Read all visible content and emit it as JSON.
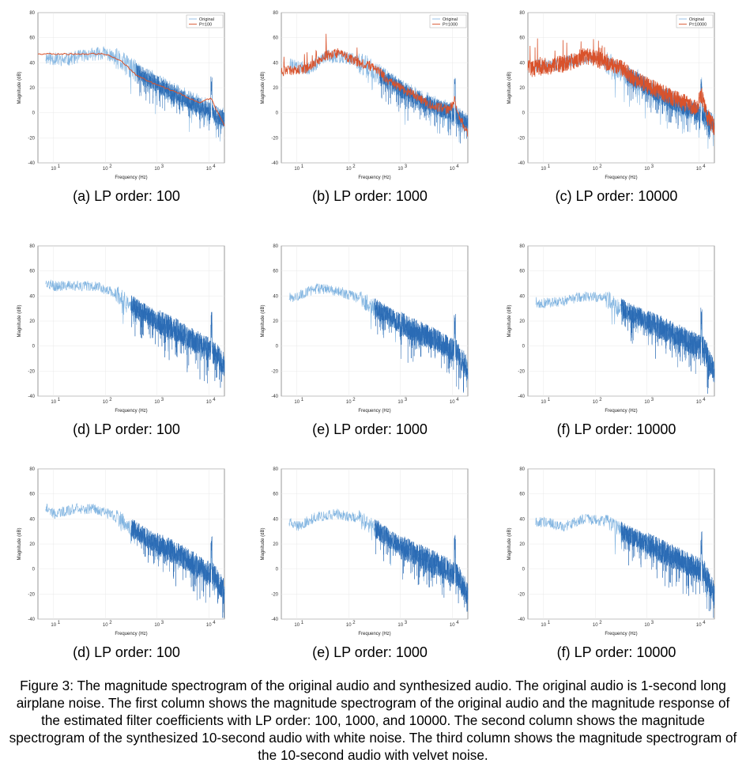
{
  "panels": [
    {
      "caption": "(a) LP order: 100",
      "legend": [
        "Original",
        "P=100"
      ],
      "kind": "lp",
      "order": 100
    },
    {
      "caption": "(b) LP order: 1000",
      "legend": [
        "Original",
        "P=1000"
      ],
      "kind": "lp",
      "order": 1000
    },
    {
      "caption": "(c) LP order: 10000",
      "legend": [
        "Original",
        "P=10000"
      ],
      "kind": "lp",
      "order": 10000
    },
    {
      "caption": "(d) LP order: 100",
      "legend": [],
      "kind": "white",
      "order": 100
    },
    {
      "caption": "(e) LP order: 1000",
      "legend": [],
      "kind": "white",
      "order": 1000
    },
    {
      "caption": "(f) LP order: 10000",
      "legend": [],
      "kind": "white",
      "order": 10000
    },
    {
      "caption": "(d) LP order: 100",
      "legend": [],
      "kind": "velvet",
      "order": 100
    },
    {
      "caption": "(e) LP order: 1000",
      "legend": [],
      "kind": "velvet",
      "order": 1000
    },
    {
      "caption": "(f) LP order: 10000",
      "legend": [],
      "kind": "velvet",
      "order": 10000
    }
  ],
  "axes": {
    "xlabel": "Frequency (Hz)",
    "ylabel": "Magnitude (dB)",
    "yticks": [
      "80",
      "60",
      "40",
      "20",
      "0",
      "-20",
      "-40"
    ],
    "xticks": [
      "10",
      "10",
      "10",
      "10"
    ],
    "xtick_exponents": [
      "1",
      "2",
      "3",
      "4"
    ]
  },
  "colors": {
    "original": "#7fb3e0",
    "synth": "#2a6bb5",
    "lp": "#d9522b",
    "axis": "#555555",
    "grid": "#e8e8e8"
  },
  "figure_caption": "Figure 3: The magnitude spectrogram of the original audio and synthesized audio. The original audio is 1-second long airplane noise.  The first column shows the magnitude spectrogram of the original audio and the magnitude response of the estimated filter coefficients with LP order: 100, 1000, and 10000. The second column shows the magnitude spectrogram of the synthesized 10-second audio with white noise. The third column shows the magnitude spectrogram of the 10-second audio with velvet noise.",
  "chart_data": [
    {
      "type": "line",
      "xlabel": "Frequency (Hz)",
      "ylabel": "Magnitude (dB)",
      "xscale": "log",
      "xlim": [
        5,
        20000
      ],
      "ylim": [
        -40,
        80
      ],
      "series": [
        {
          "name": "Original",
          "x": [
            10,
            100,
            1000,
            10000,
            20000
          ],
          "values": [
            45,
            48,
            15,
            -5,
            -10
          ]
        },
        {
          "name": "P=100",
          "x": [
            5,
            100,
            1000,
            10000,
            20000
          ],
          "values": [
            47,
            47,
            18,
            5,
            -10
          ]
        }
      ]
    },
    {
      "type": "line",
      "xlabel": "Frequency (Hz)",
      "ylabel": "Magnitude (dB)",
      "xscale": "log",
      "xlim": [
        5,
        20000
      ],
      "ylim": [
        -40,
        80
      ],
      "series": [
        {
          "name": "Original",
          "x": [
            10,
            100,
            1000,
            10000,
            20000
          ],
          "values": [
            38,
            42,
            12,
            -5,
            -10
          ]
        },
        {
          "name": "P=1000",
          "x": [
            5,
            100,
            1000,
            10000,
            20000
          ],
          "values": [
            33,
            40,
            15,
            2,
            -15
          ]
        }
      ]
    },
    {
      "type": "line",
      "xlabel": "Frequency (Hz)",
      "ylabel": "Magnitude (dB)",
      "xscale": "log",
      "xlim": [
        5,
        20000
      ],
      "ylim": [
        -40,
        80
      ],
      "series": [
        {
          "name": "Original",
          "x": [
            10,
            100,
            1000,
            10000,
            20000
          ],
          "values": [
            38,
            42,
            12,
            -5,
            -10
          ]
        },
        {
          "name": "P=10000",
          "x": [
            5,
            100,
            1000,
            10000,
            20000
          ],
          "values": [
            35,
            42,
            14,
            3,
            -12
          ]
        }
      ]
    },
    {
      "type": "line",
      "xlabel": "Frequency (Hz)",
      "ylabel": "Magnitude (dB)",
      "xscale": "log",
      "xlim": [
        5,
        20000
      ],
      "ylim": [
        -40,
        80
      ],
      "series": [
        {
          "x": [
            5,
            100,
            1000,
            10000,
            20000
          ],
          "values": [
            54,
            45,
            15,
            -5,
            -20
          ]
        }
      ]
    },
    {
      "type": "line",
      "xlabel": "Frequency (Hz)",
      "ylabel": "Magnitude (dB)",
      "xscale": "log",
      "xlim": [
        5,
        20000
      ],
      "ylim": [
        -40,
        80
      ],
      "series": [
        {
          "x": [
            5,
            100,
            1000,
            10000,
            20000
          ],
          "values": [
            37,
            45,
            15,
            -5,
            -20
          ]
        }
      ]
    },
    {
      "type": "line",
      "xlabel": "Frequency (Hz)",
      "ylabel": "Magnitude (dB)",
      "xscale": "log",
      "xlim": [
        5,
        20000
      ],
      "ylim": [
        -40,
        80
      ],
      "series": [
        {
          "x": [
            5,
            100,
            1000,
            10000,
            20000
          ],
          "values": [
            36,
            40,
            15,
            -5,
            -20
          ]
        }
      ]
    },
    {
      "type": "line",
      "xlabel": "Frequency (Hz)",
      "ylabel": "Magnitude (dB)",
      "xscale": "log",
      "xlim": [
        5,
        20000
      ],
      "ylim": [
        -40,
        80
      ],
      "series": [
        {
          "x": [
            5,
            100,
            1000,
            10000,
            20000
          ],
          "values": [
            54,
            45,
            15,
            -5,
            -20
          ]
        }
      ]
    },
    {
      "type": "line",
      "xlabel": "Frequency (Hz)",
      "ylabel": "Magnitude (dB)",
      "xscale": "log",
      "xlim": [
        5,
        20000
      ],
      "ylim": [
        -40,
        80
      ],
      "series": [
        {
          "x": [
            5,
            100,
            1000,
            10000,
            20000
          ],
          "values": [
            42,
            42,
            15,
            -5,
            -20
          ]
        }
      ]
    },
    {
      "type": "line",
      "xlabel": "Frequency (Hz)",
      "ylabel": "Magnitude (dB)",
      "xscale": "log",
      "xlim": [
        5,
        20000
      ],
      "ylim": [
        -40,
        80
      ],
      "series": [
        {
          "x": [
            5,
            100,
            1000,
            10000,
            20000
          ],
          "values": [
            35,
            42,
            15,
            -5,
            -20
          ]
        }
      ]
    }
  ]
}
